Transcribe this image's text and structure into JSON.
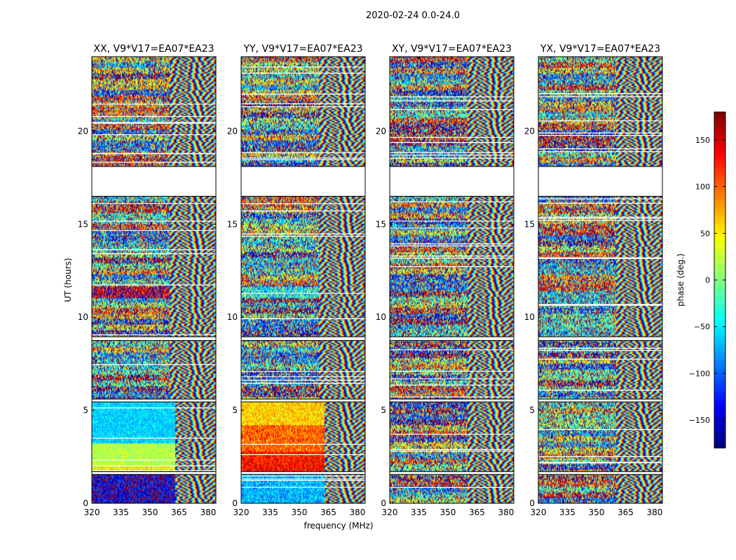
{
  "chart_data": {
    "type": "heatmap",
    "suptitle": "2020-02-24 0.0-24.0",
    "ylabel": "UT (hours)",
    "xlabel": "frequency (MHz)",
    "xlim": [
      320,
      384
    ],
    "ylim": [
      0,
      24
    ],
    "xticks": [
      320,
      335,
      350,
      365,
      380
    ],
    "yticks": [
      0,
      5,
      10,
      15,
      20
    ],
    "gaps_hours": [
      [
        16.5,
        18.1
      ],
      [
        5.45,
        5.6
      ],
      [
        8.75,
        8.95
      ],
      [
        1.55,
        1.7
      ]
    ],
    "panels": [
      {
        "title": "XX, V9*V17=EA07*EA23",
        "bands": [
          {
            "from": 0.0,
            "to": 1.55,
            "phase": -150,
            "noise": 0.35,
            "fringe_from": 363
          },
          {
            "from": 1.7,
            "to": 2.0,
            "phase": 40,
            "noise": 0.25,
            "fringe_from": 363
          },
          {
            "from": 2.0,
            "to": 3.2,
            "phase": 20,
            "noise": 0.15,
            "fringe_from": 363
          },
          {
            "from": 3.2,
            "to": 5.45,
            "phase": -60,
            "noise": 0.15,
            "fringe_from": 363
          },
          {
            "from": 11.0,
            "to": 11.6,
            "phase": 160,
            "noise": 0.45,
            "fringe_from": 360
          }
        ]
      },
      {
        "title": "YY, V9*V17=EA07*EA23",
        "bands": [
          {
            "from": 0.0,
            "to": 1.55,
            "phase": -70,
            "noise": 0.25,
            "fringe_from": 363
          },
          {
            "from": 1.7,
            "to": 2.8,
            "phase": 130,
            "noise": 0.2,
            "fringe_from": 363
          },
          {
            "from": 2.8,
            "to": 4.2,
            "phase": 100,
            "noise": 0.25,
            "fringe_from": 363
          },
          {
            "from": 4.2,
            "to": 5.45,
            "phase": 60,
            "noise": 0.2,
            "fringe_from": 363
          },
          {
            "from": 11.0,
            "to": 11.6,
            "phase": -40,
            "noise": 0.45,
            "fringe_from": 360
          }
        ]
      },
      {
        "title": "XY, V9*V17=EA07*EA23",
        "bands": []
      },
      {
        "title": "YX, V9*V17=EA07*EA23",
        "bands": []
      }
    ],
    "colorbar": {
      "label": "phase (deg.)",
      "range": [
        -180,
        180
      ],
      "ticks": [
        150,
        100,
        50,
        0,
        -50,
        -100,
        -150
      ],
      "tick_labels": [
        "150",
        "100",
        "50",
        "0",
        "−50",
        "−100",
        "−150"
      ],
      "colormap": "jet"
    }
  }
}
